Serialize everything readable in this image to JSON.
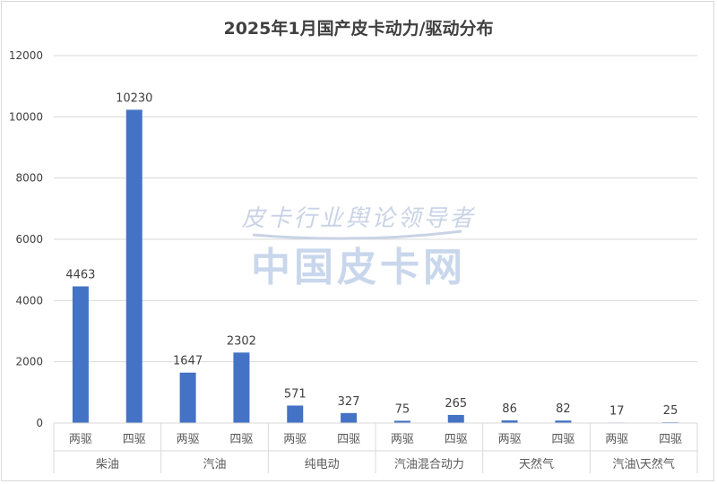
{
  "chart_data": {
    "type": "bar",
    "title": "2025年1月国产皮卡动力/驱动分布",
    "ylim": [
      0,
      12000
    ],
    "yticks": [
      0,
      2000,
      4000,
      6000,
      8000,
      10000,
      12000
    ],
    "grid": true,
    "groups": [
      {
        "name": "柴油",
        "categories": [
          "两驱",
          "四驱"
        ],
        "values": [
          4463,
          10230
        ]
      },
      {
        "name": "汽油",
        "categories": [
          "两驱",
          "四驱"
        ],
        "values": [
          1647,
          2302
        ]
      },
      {
        "name": "纯电动",
        "categories": [
          "两驱",
          "四驱"
        ],
        "values": [
          571,
          327
        ]
      },
      {
        "name": "汽油混合动力",
        "categories": [
          "两驱",
          "四驱"
        ],
        "values": [
          75,
          265
        ]
      },
      {
        "name": "天然气",
        "categories": [
          "两驱",
          "四驱"
        ],
        "values": [
          86,
          82
        ]
      },
      {
        "name": "汽油\\天然气",
        "categories": [
          "两驱",
          "四驱"
        ],
        "values": [
          17,
          25
        ]
      }
    ],
    "bar_color": "#4472c4"
  },
  "watermark": {
    "line1": "皮卡行业舆论领导者",
    "line2": "中国皮卡网"
  }
}
